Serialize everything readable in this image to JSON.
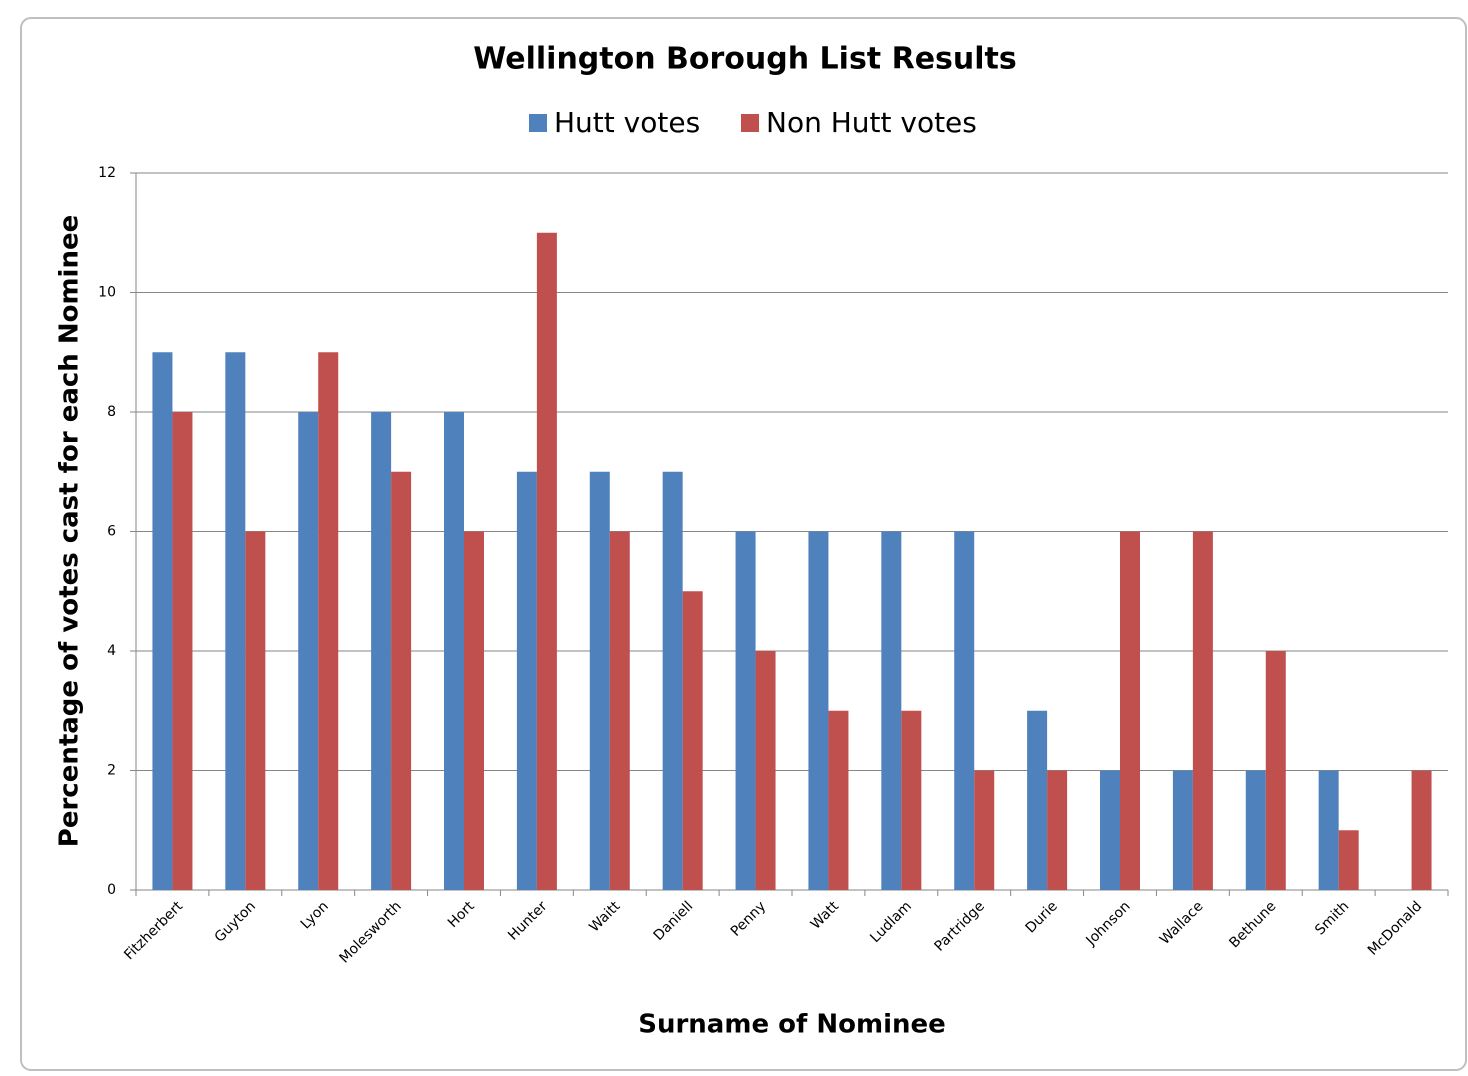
{
  "chart_data": {
    "type": "bar",
    "title": "Wellington Borough List Results",
    "x_label": "Surname of Nominee",
    "y_label": "Percentage of votes cast for each Nominee",
    "categories": [
      "Fitzherbert",
      "Guyton",
      "Lyon",
      "Molesworth",
      "Hort",
      "Hunter",
      "Waitt",
      "Daniell",
      "Penny",
      "Watt",
      "Ludlam",
      "Partridge",
      "Durie",
      "Johnson",
      "Wallace",
      "Bethune",
      "Smith",
      "McDonald"
    ],
    "series": [
      {
        "name": "Hutt votes",
        "color": "#4f81bd",
        "values": [
          9,
          9,
          8,
          8,
          8,
          7,
          7,
          7,
          6,
          6,
          6,
          6,
          3,
          2,
          2,
          2,
          2,
          0
        ]
      },
      {
        "name": "Non Hutt votes",
        "color": "#c0504d",
        "values": [
          8,
          6,
          9,
          7,
          6,
          11,
          6,
          5,
          4,
          3,
          3,
          2,
          2,
          6,
          6,
          4,
          1,
          2
        ]
      }
    ],
    "ylim": [
      0,
      12
    ],
    "yticks": [
      0,
      2,
      4,
      6,
      8,
      10,
      12
    ],
    "grid": true,
    "legend": "top"
  }
}
